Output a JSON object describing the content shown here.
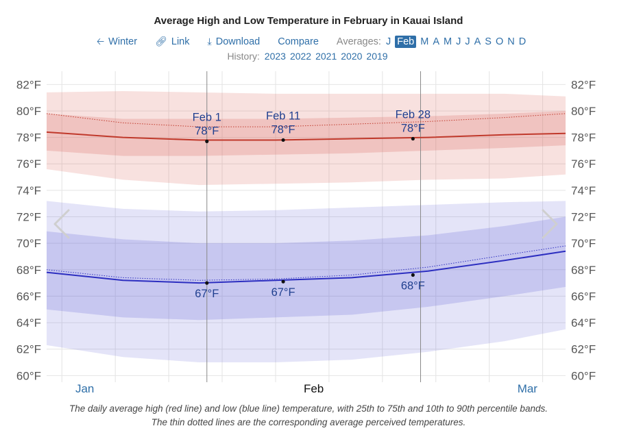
{
  "header": {
    "title": "Average High and Low Temperature in February in Kauai Island",
    "winter_label": "Winter",
    "link_label": "Link",
    "download_label": "Download",
    "compare_label": "Compare",
    "averages_label": "Averages:",
    "months": [
      "J",
      "Feb",
      "M",
      "A",
      "M",
      "J",
      "J",
      "A",
      "S",
      "O",
      "N",
      "D"
    ],
    "selected_month_index": 1,
    "history_label": "History:",
    "history_years": [
      "2023",
      "2022",
      "2021",
      "2020",
      "2019"
    ]
  },
  "icons": {
    "back": "arrow-left-icon",
    "link": "link-icon",
    "download": "download-icon",
    "prev": "chevron-left-icon",
    "next": "chevron-right-icon"
  },
  "colors": {
    "high": "#c0392b",
    "low": "#2c2ec0",
    "accent": "#2f6fa8"
  },
  "caption": [
    "The daily average high (red line) and low (blue line) temperature, with 25th to 75th and 10th to 90th percentile bands.",
    "The thin dotted lines are the corresponding average perceived temperatures."
  ],
  "chart_data": {
    "type": "line",
    "x_start": "Jan 11",
    "x_end": "Mar 20",
    "x_tick_labels": [
      {
        "label": "Jan",
        "date": "Jan 16"
      },
      {
        "label": "Feb",
        "date": "Feb 15"
      },
      {
        "label": "Mar",
        "date": "Mar 15"
      }
    ],
    "y_ticks": [
      "60°F",
      "62°F",
      "64°F",
      "66°F",
      "68°F",
      "70°F",
      "72°F",
      "74°F",
      "76°F",
      "78°F",
      "80°F",
      "82°F"
    ],
    "ylim": [
      59.5,
      83
    ],
    "grid": true,
    "x": [
      "Jan 11",
      "Jan 21",
      "Jan 31",
      "Feb 10",
      "Feb 20",
      "Mar 2",
      "Mar 12",
      "Mar 20"
    ],
    "series": [
      {
        "name": "high average",
        "values": [
          78.4,
          78.0,
          77.8,
          77.8,
          77.9,
          78.0,
          78.2,
          78.3
        ]
      },
      {
        "name": "high perceived",
        "values": [
          79.8,
          79.1,
          78.8,
          78.8,
          79.0,
          79.2,
          79.5,
          79.8
        ]
      },
      {
        "name": "high p25",
        "values": [
          77.0,
          76.6,
          76.6,
          76.7,
          76.8,
          77.0,
          77.2,
          77.4
        ]
      },
      {
        "name": "high p75",
        "values": [
          79.8,
          79.4,
          79.4,
          79.4,
          79.5,
          79.6,
          79.8,
          80.0
        ]
      },
      {
        "name": "high p10",
        "values": [
          75.6,
          74.8,
          74.4,
          74.5,
          74.6,
          74.8,
          74.9,
          75.2
        ]
      },
      {
        "name": "high p90",
        "values": [
          81.4,
          81.5,
          81.4,
          81.3,
          81.3,
          81.3,
          81.3,
          81.1
        ]
      },
      {
        "name": "low average",
        "values": [
          67.8,
          67.2,
          67.0,
          67.2,
          67.4,
          67.9,
          68.7,
          69.4
        ]
      },
      {
        "name": "low perceived",
        "values": [
          68.0,
          67.4,
          67.2,
          67.3,
          67.6,
          68.2,
          69.1,
          69.8
        ]
      },
      {
        "name": "low p25",
        "values": [
          65.0,
          64.4,
          64.2,
          64.4,
          64.6,
          65.2,
          66.0,
          66.7
        ]
      },
      {
        "name": "low p75",
        "values": [
          70.9,
          70.3,
          70.0,
          70.0,
          70.2,
          70.6,
          71.3,
          72.0
        ]
      },
      {
        "name": "low p10",
        "values": [
          62.3,
          61.4,
          61.0,
          61.0,
          61.2,
          61.8,
          62.6,
          63.5
        ]
      },
      {
        "name": "low p90",
        "values": [
          73.2,
          72.6,
          72.4,
          72.5,
          72.7,
          72.9,
          73.1,
          73.2
        ]
      }
    ],
    "annotations": [
      {
        "date": "Feb 1",
        "high": "78°F",
        "low": "67°F",
        "high_value": 77.7,
        "low_value": 67.0
      },
      {
        "date": "Feb 11",
        "high": "78°F",
        "low": "67°F",
        "high_value": 77.8,
        "low_value": 67.1
      },
      {
        "date": "Feb 28",
        "high": "78°F",
        "low": "68°F",
        "high_value": 77.9,
        "low_value": 67.6
      }
    ],
    "month_boundaries": [
      "Feb 1",
      "Mar 1"
    ]
  }
}
